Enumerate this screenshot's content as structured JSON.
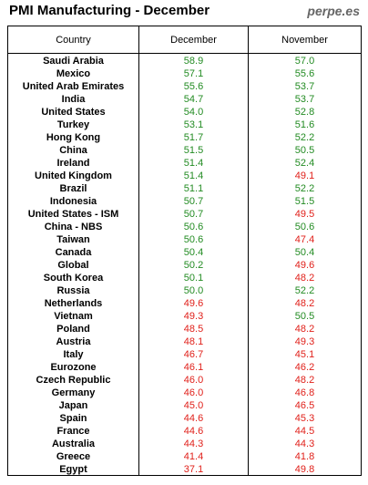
{
  "header": {
    "title": "PMI Manufacturing - December",
    "brand": "perpe.es"
  },
  "colors": {
    "expansion": "#228b22",
    "contraction": "#e0201a"
  },
  "chart_data": {
    "type": "table",
    "columns": [
      "Country",
      "December",
      "November"
    ],
    "threshold": 50,
    "rows": [
      {
        "country": "Saudi Arabia",
        "december": 58.9,
        "november": 57.0
      },
      {
        "country": "Mexico",
        "december": 57.1,
        "november": 55.6
      },
      {
        "country": "United Arab Emirates",
        "december": 55.6,
        "november": 53.7
      },
      {
        "country": "India",
        "december": 54.7,
        "november": 53.7
      },
      {
        "country": "United States",
        "december": 54.0,
        "november": 52.8
      },
      {
        "country": "Turkey",
        "december": 53.1,
        "november": 51.6
      },
      {
        "country": "Hong Kong",
        "december": 51.7,
        "november": 52.2
      },
      {
        "country": "China",
        "december": 51.5,
        "november": 50.5
      },
      {
        "country": "Ireland",
        "december": 51.4,
        "november": 52.4
      },
      {
        "country": "United Kingdom",
        "december": 51.4,
        "november": 49.1
      },
      {
        "country": "Brazil",
        "december": 51.1,
        "november": 52.2
      },
      {
        "country": "Indonesia",
        "december": 50.7,
        "november": 51.5
      },
      {
        "country": "United States - ISM",
        "december": 50.7,
        "november": 49.5
      },
      {
        "country": "China - NBS",
        "december": 50.6,
        "november": 50.6
      },
      {
        "country": "Taiwan",
        "december": 50.6,
        "november": 47.4
      },
      {
        "country": "Canada",
        "december": 50.4,
        "november": 50.4
      },
      {
        "country": "Global",
        "december": 50.2,
        "november": 49.6
      },
      {
        "country": "South Korea",
        "december": 50.1,
        "november": 48.2
      },
      {
        "country": "Russia",
        "december": 50.0,
        "november": 52.2
      },
      {
        "country": "Netherlands",
        "december": 49.6,
        "november": 48.2
      },
      {
        "country": "Vietnam",
        "december": 49.3,
        "november": 50.5
      },
      {
        "country": "Poland",
        "december": 48.5,
        "november": 48.2
      },
      {
        "country": "Austria",
        "december": 48.1,
        "november": 49.3
      },
      {
        "country": "Italy",
        "december": 46.7,
        "november": 45.1
      },
      {
        "country": "Eurozone",
        "december": 46.1,
        "november": 46.2
      },
      {
        "country": "Czech Republic",
        "december": 46.0,
        "november": 48.2
      },
      {
        "country": "Germany",
        "december": 46.0,
        "november": 46.8
      },
      {
        "country": "Japan",
        "december": 45.0,
        "november": 46.5
      },
      {
        "country": "Spain",
        "december": 44.6,
        "november": 45.3
      },
      {
        "country": "France",
        "december": 44.6,
        "november": 44.5
      },
      {
        "country": "Australia",
        "december": 44.3,
        "november": 44.3
      },
      {
        "country": "Greece",
        "december": 41.4,
        "november": 41.8
      },
      {
        "country": "Egypt",
        "december": 37.1,
        "november": 49.8
      }
    ]
  }
}
